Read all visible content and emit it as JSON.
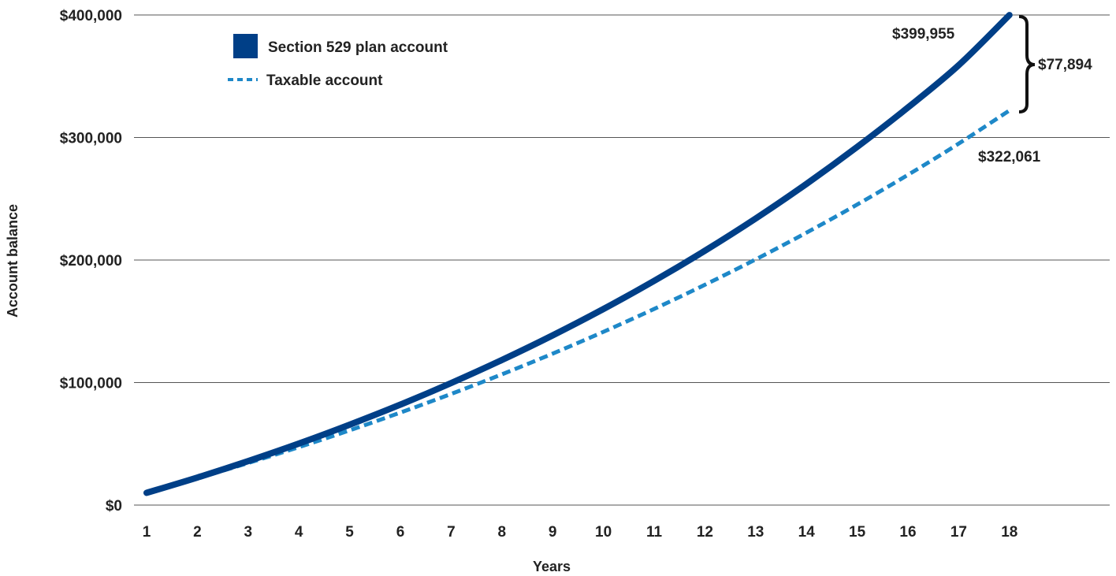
{
  "chart_data": {
    "type": "line",
    "title": "",
    "xlabel": "Years",
    "ylabel": "Account balance",
    "x": [
      1,
      2,
      3,
      4,
      5,
      6,
      7,
      8,
      9,
      10,
      11,
      12,
      13,
      14,
      15,
      16,
      17,
      18
    ],
    "x_tick_labels": [
      "1",
      "2",
      "3",
      "4",
      "5",
      "6",
      "7",
      "8",
      "9",
      "10",
      "11",
      "12",
      "13",
      "14",
      "15",
      "16",
      "17",
      "18"
    ],
    "ylim": [
      0,
      400000
    ],
    "y_ticks": [
      0,
      100000,
      200000,
      300000,
      400000
    ],
    "y_tick_labels": [
      "$0",
      "$100,000",
      "$200,000",
      "$300,000",
      "$400,000"
    ],
    "grid": "horizontal",
    "legend_position": "top-left",
    "series": [
      {
        "name": "Section 529 plan account",
        "style": "solid",
        "color": "#003f87",
        "values": [
          10000,
          22500,
          35900,
          50200,
          65600,
          82000,
          99600,
          118400,
          138500,
          160000,
          183000,
          207600,
          233900,
          262100,
          292300,
          324500,
          359000,
          399955
        ]
      },
      {
        "name": "Taxable account",
        "style": "dashed",
        "color": "#1e88c8",
        "values": [
          10000,
          21900,
          34300,
          47300,
          61000,
          75500,
          90700,
          106700,
          123600,
          141400,
          160100,
          179800,
          200500,
          222300,
          245300,
          269500,
          295000,
          322061
        ]
      }
    ],
    "annotations": {
      "end_529": "$399,955",
      "end_taxable": "$322,061",
      "difference": "$77,894"
    }
  }
}
